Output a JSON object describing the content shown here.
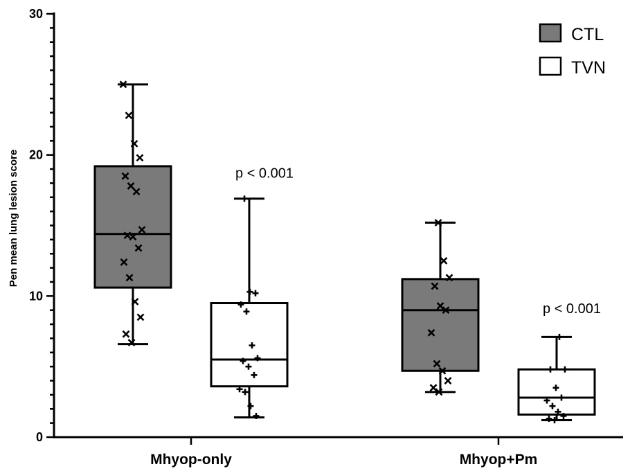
{
  "chart_data": {
    "type": "box",
    "ylabel": "Pen mean lung lesion score",
    "xlabel": "",
    "ylim": [
      0,
      30
    ],
    "yticks": [
      0,
      10,
      20,
      30
    ],
    "categories": [
      "Mhyop-only",
      "Mhyop+Pm"
    ],
    "legend": {
      "placement": "top-right"
    },
    "colors": {
      "CTL": "#7a7a7a",
      "TVN": "#ffffff",
      "ink": "#000000"
    },
    "series": [
      {
        "name": "CTL",
        "marker": "x",
        "boxes": [
          {
            "category": "Mhyop-only",
            "min": 6.6,
            "q1": 10.6,
            "median": 14.4,
            "q3": 19.2,
            "max": 25.0,
            "points": [
              25.0,
              22.8,
              20.8,
              19.8,
              18.5,
              17.8,
              17.4,
              14.7,
              14.3,
              14.2,
              13.4,
              12.4,
              11.3,
              9.6,
              8.5,
              7.3,
              6.7
            ]
          },
          {
            "category": "Mhyop+Pm",
            "min": 3.2,
            "q1": 4.7,
            "median": 9.0,
            "q3": 11.2,
            "max": 15.2,
            "points": [
              15.2,
              12.5,
              11.3,
              10.7,
              9.3,
              9.0,
              7.4,
              5.2,
              4.7,
              4.0,
              3.5,
              3.2
            ]
          }
        ]
      },
      {
        "name": "TVN",
        "marker": "+",
        "boxes": [
          {
            "category": "Mhyop-only",
            "min": 1.4,
            "q1": 3.6,
            "median": 5.5,
            "q3": 9.5,
            "max": 16.9,
            "points": [
              16.9,
              10.3,
              10.2,
              9.4,
              8.9,
              6.5,
              5.6,
              5.4,
              5.0,
              4.4,
              3.4,
              3.2,
              2.2,
              1.5
            ]
          },
          {
            "category": "Mhyop+Pm",
            "min": 1.2,
            "q1": 1.6,
            "median": 2.8,
            "q3": 4.8,
            "max": 7.1,
            "points": [
              7.1,
              4.8,
              4.8,
              3.5,
              2.8,
              2.6,
              2.2,
              1.8,
              1.5,
              1.3,
              1.2
            ]
          }
        ]
      }
    ],
    "annotations": [
      {
        "category": "Mhyop-only",
        "series": "TVN",
        "text": "p < 0.001",
        "y": 18.4
      },
      {
        "category": "Mhyop+Pm",
        "series": "TVN",
        "text": "p < 0.001",
        "y": 8.8
      }
    ]
  }
}
